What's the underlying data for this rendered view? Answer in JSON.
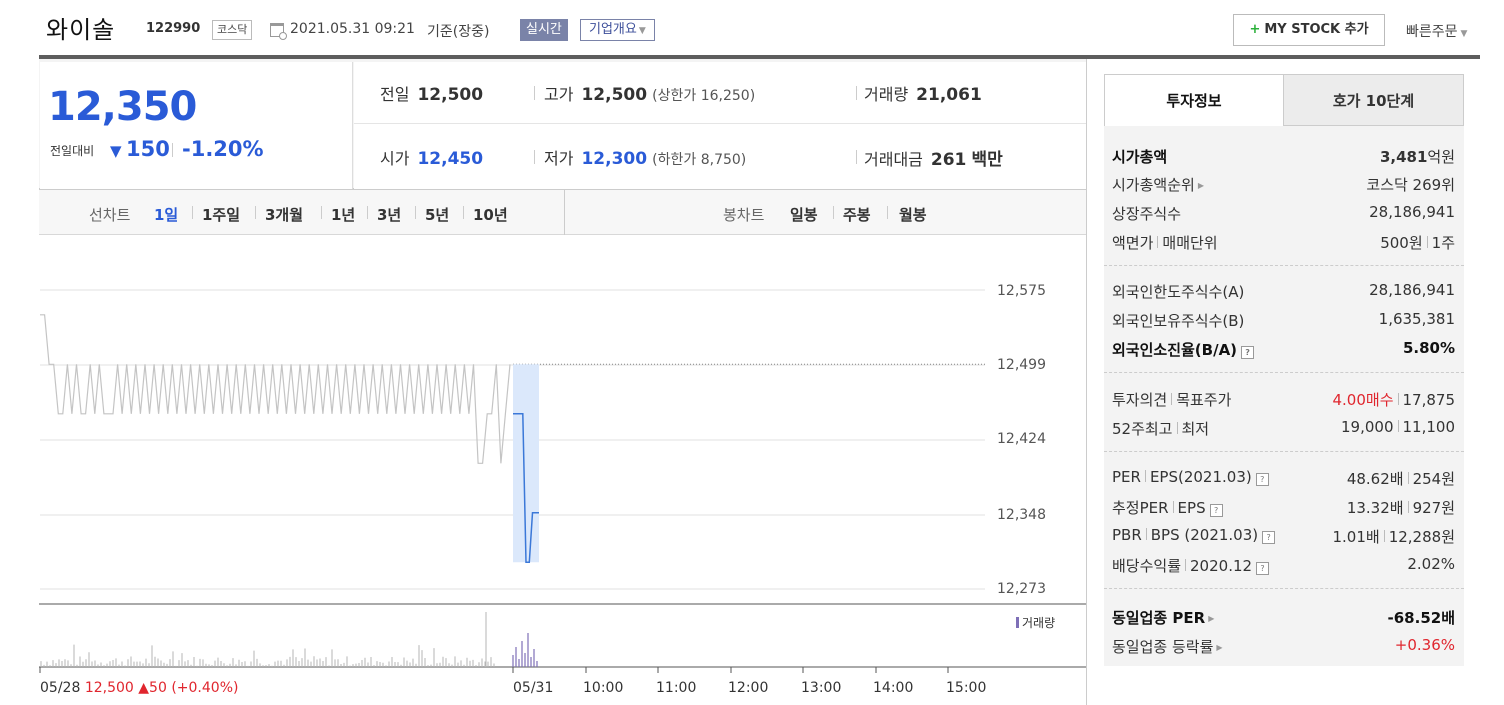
{
  "header": {
    "name": "와이솔",
    "code": "122990",
    "market": "코스닥",
    "datetime": "2021.05.31 09:21",
    "status": "기준(장중)",
    "realtime_label": "실시간",
    "company_label": "기업개요",
    "mystock_label": "MY STOCK 추가",
    "quick_order_label": "빠른주문"
  },
  "price": {
    "current": "12,350",
    "change_label": "전일대비",
    "change_value": "150",
    "change_pct": "-1.20%"
  },
  "details": {
    "prev_label": "전일",
    "prev": "12,500",
    "high_label": "고가",
    "high": "12,500",
    "upper_limit": "(상한가 16,250)",
    "volume_label": "거래량",
    "volume": "21,061",
    "open_label": "시가",
    "open": "12,450",
    "low_label": "저가",
    "low": "12,300",
    "lower_limit": "(하한가 8,750)",
    "amount_label": "거래대금",
    "amount": "261",
    "amount_unit": "백만"
  },
  "chart_tabs": {
    "line_label": "선차트",
    "line_periods": [
      "1일",
      "1주일",
      "3개월",
      "1년",
      "3년",
      "5년",
      "10년"
    ],
    "candle_label": "봉차트",
    "candle_periods": [
      "일봉",
      "주봉",
      "월봉"
    ]
  },
  "chart_data": {
    "type": "line",
    "y_ticks": [
      "12,575",
      "12,499",
      "12,424",
      "12,348",
      "12,273"
    ],
    "ylim": [
      12273,
      12575
    ],
    "x_ticks": [
      "05/28",
      "05/31",
      "10:00",
      "11:00",
      "12:00",
      "13:00",
      "14:00",
      "15:00"
    ],
    "prev_close": 12500,
    "series": [
      {
        "values": [
          12550,
          12550,
          12500,
          12500,
          12450,
          12450,
          12500,
          12450,
          12500,
          12450,
          12450,
          12500,
          12450,
          12500,
          12450,
          12450,
          12450,
          12500,
          12450,
          12500,
          12450,
          12500,
          12450,
          12500,
          12450,
          12500,
          12450,
          12500,
          12450,
          12500,
          12450,
          12500,
          12450,
          12500,
          12450,
          12500,
          12450,
          12500,
          12450,
          12500,
          12450,
          12500,
          12450,
          12500,
          12450,
          12500,
          12450,
          12500,
          12450,
          12500,
          12450,
          12500,
          12450,
          12500,
          12450,
          12500,
          12450,
          12500,
          12450,
          12500,
          12450,
          12500,
          12450,
          12500,
          12450,
          12500,
          12450,
          12500,
          12450,
          12500,
          12450,
          12500,
          12450,
          12500,
          12450,
          12500,
          12450,
          12500,
          12450,
          12500,
          12450,
          12500,
          12450,
          12500,
          12450,
          12500,
          12450,
          12500,
          12450,
          12500,
          12450,
          12500,
          12450,
          12500,
          12450,
          12500,
          12400,
          12400,
          12450,
          12450,
          12500,
          12400,
          12450,
          12500
        ]
      },
      {
        "values": [
          12450,
          12450,
          12450,
          12450,
          12300,
          12300,
          12350,
          12350,
          12350
        ]
      }
    ],
    "volume_legend": "거래량",
    "base_info": {
      "date": "05/28",
      "close": "12,500",
      "arrow": "▲",
      "chg": "50",
      "pct": "(+0.40%)"
    }
  },
  "right": {
    "tab_active": "투자정보",
    "tab_other": "호가 10단계",
    "market_cap_label": "시가총액",
    "market_cap": "3,481",
    "market_cap_unit": "억원",
    "market_cap_rank_label": "시가총액순위",
    "market_cap_rank": "코스닥 269위",
    "shares_label": "상장주식수",
    "shares": "28,186,941",
    "par_label": "액면가",
    "unit_label": "매매단위",
    "par": "500원",
    "unit": "1주",
    "foreign_limit_label": "외국인한도주식수(A)",
    "foreign_limit": "28,186,941",
    "foreign_hold_label": "외국인보유주식수(B)",
    "foreign_hold": "1,635,381",
    "foreign_ratio_label": "외국인소진율(B/A)",
    "foreign_ratio": "5.80%",
    "opinion_label": "투자의견",
    "target_label": "목표주가",
    "opinion": "4.00매수",
    "target": "17,875",
    "w52_label": "52주최고",
    "w52_low_label": "최저",
    "w52_high": "19,000",
    "w52_low": "11,100",
    "per_label": "PER",
    "eps_label": "EPS(2021.03)",
    "per": "48.62배",
    "eps": "254원",
    "est_per_label": "추정PER",
    "est_eps_label": "EPS",
    "est_per": "13.32배",
    "est_eps": "927원",
    "pbr_label": "PBR",
    "bps_label": "BPS (2021.03)",
    "pbr": "1.01배",
    "bps": "12,288원",
    "div_label": "배당수익률",
    "div_year": "2020.12",
    "div": "2.02%",
    "ind_per_label": "동일업종 PER",
    "ind_per": "-68.52배",
    "ind_chg_label": "동일업종 등락률",
    "ind_chg": "+0.36%"
  }
}
